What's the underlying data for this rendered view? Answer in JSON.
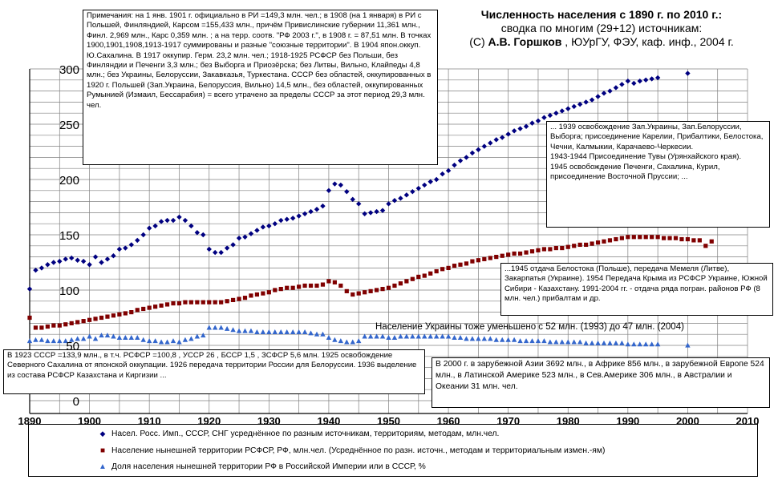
{
  "title": {
    "line1": "Численность населения с 1890 г. по 2010 г.:",
    "line2": "сводка по многим (29+12) источникам:",
    "line3_a": "(С) ",
    "line3_b": "А.В. Горшков",
    "line3_c": " , ЮУрГУ, ФЭУ, каф. инф., 2004 г."
  },
  "notes": {
    "top_left": "Примечания: на 1 янв. 1901 г. официально в РИ =149,3 млн. чел.; в 1908 (на 1 января) в РИ с Польшей, Финляндией, Карсом =155,433 млн., причём Привислинские губернии 11,361 млн., Финл. 2,969 млн., Карс 0,359 млн. ; а на терр. соотв. \"РФ 2003 г.\", в 1908 г. = 87,51 млн. В точках 1900,1901,1908,1913-1917 суммированы и разные \"союзные территории\". В 1904 япон.оккуп. Ю.Сахалина.  В 1917 оккупир. Герм. 23,2 млн. чел.; 1918-1925 РСФСР без Польши, без Финляндии и Печенги 3,3 млн.; без Выборга и Приозёрска; без Литвы, Вильно, Клайпеды 4,8 млн.; без Украины, Белоруссии, Закавказья, Туркестана. СССР без областей, оккупированных в 1920 г. Польшей (Зап.Украина, Белоруссия, Вильно) 14,5 млн., без областей, оккупированных Румынией (Измаил, Бессарабия) = всего утрачено за пределы СССР за этот период 29,3 млн. чел.",
    "right_1939": "... 1939  освобождение Зап.Украины, Зап.Белоруссии, Выборга; присоединение Карелии, Прибалтики, Белостока, Чечни, Калмыкии, Карачаево-Черкесии.\n1943-1944 Присоединение Тувы (Урянхайского края).\n1945 освобождение Печенги, Сахалина, Курил, присоединение Восточной Пруссии; ...",
    "right_1945": "...1945 отдача Белостока (Польше), передача Мемеля (Литве), Закарпатья (Украине). 1954 Передача Крыма из РСФСР Украине, Южной Сибири - Казахстану. 1991-2004 гг. - отдача ряда погран. районов РФ (8 млн. чел.) прибалтам   и др.",
    "ukraine": "Население Украины тоже уменьшено с 52 млн. (1993) до 47 млн. (2004)",
    "left_1923": "В 1923 СССР =133,9 млн., в т.ч. РСФСР =100,8 , УССР 26 , БССР 1,5 , ЗСФСР 5,6 млн. 1925 освобождение Северного Сахалина от японской оккупации. 1926 передача территории России для Белоруссии. 1936 выделение из состава РСФСР Казахстана и Киргизии ...",
    "right_2000": "В 2000 г. в зарубежной Азии 3692 млн., в Африке 856 млн., в зарубежной Европе 524 млн., в Латинской Америке 523 млн., в Сев.Америке 306 млн.,  в Австралии и Океании 31 млн. чел."
  },
  "legend": {
    "s1": "Насел. Росс. Имп., СССР, СНГ усреднённое по разным источникам, территориям, методам, млн.чел.",
    "s2": "Население нынешней территории РСФСР, РФ, млн.чел. (Усреднённое по разн. источн., методам и территориальным измен.-ям)",
    "s3": "Доля населения нынешней территории РФ в Российской Империи или в СССР, %"
  },
  "colors": {
    "s1": "#000080",
    "s2": "#800000",
    "s3": "#3366cc",
    "grid": "#808080",
    "axis": "#000000"
  },
  "chart_data": {
    "type": "scatter",
    "title": "Численность населения с 1890 г. по 2010 г.:",
    "xlim": [
      1890,
      2010
    ],
    "ylim": [
      0,
      300
    ],
    "x_ticks": [
      "1890",
      "1900",
      "1910",
      "1920",
      "1930",
      "1940",
      "1950",
      "1960",
      "1970",
      "1980",
      "1990",
      "2000",
      "2010"
    ],
    "y_ticks": [
      "0",
      "50",
      "100",
      "150",
      "200",
      "250",
      "300"
    ],
    "grid": true,
    "legend_position": "bottom",
    "series": [
      {
        "name": "Насел. Росс. Имп., СССР, СНГ усреднённое по разным источникам, территориям, методам, млн.чел.",
        "marker": "diamond",
        "x": [
          1890,
          1891,
          1892,
          1893,
          1894,
          1895,
          1896,
          1897,
          1898,
          1899,
          1900,
          1901,
          1902,
          1903,
          1904,
          1905,
          1906,
          1907,
          1908,
          1909,
          1910,
          1911,
          1912,
          1913,
          1914,
          1915,
          1916,
          1917,
          1918,
          1919,
          1920,
          1921,
          1922,
          1923,
          1924,
          1925,
          1926,
          1927,
          1928,
          1929,
          1930,
          1931,
          1932,
          1933,
          1934,
          1935,
          1936,
          1937,
          1938,
          1939,
          1940,
          1941,
          1942,
          1943,
          1944,
          1945,
          1946,
          1947,
          1948,
          1949,
          1950,
          1951,
          1952,
          1953,
          1954,
          1955,
          1956,
          1957,
          1958,
          1959,
          1960,
          1961,
          1962,
          1963,
          1964,
          1965,
          1966,
          1967,
          1968,
          1969,
          1970,
          1971,
          1972,
          1973,
          1974,
          1975,
          1976,
          1977,
          1978,
          1979,
          1980,
          1981,
          1982,
          1983,
          1984,
          1985,
          1986,
          1987,
          1988,
          1989,
          1990,
          1991,
          1992,
          1993,
          1994,
          1995,
          2000
        ],
        "y": [
          101,
          118,
          120,
          123,
          125,
          126,
          128,
          129,
          127,
          126,
          123,
          130,
          125,
          128,
          131,
          137,
          138,
          141,
          145,
          150,
          156,
          158,
          162,
          163,
          163,
          166,
          163,
          158,
          152,
          150,
          137,
          134,
          134,
          138,
          141,
          147,
          148,
          151,
          154,
          157,
          158,
          160,
          163,
          164,
          165,
          167,
          169,
          171,
          173,
          176,
          190,
          196,
          195,
          189,
          182,
          178,
          169,
          170,
          171,
          172,
          178,
          181,
          183,
          186,
          189,
          192,
          195,
          198,
          200,
          205,
          208,
          213,
          217,
          220,
          224,
          227,
          230,
          233,
          236,
          238,
          241,
          244,
          246,
          248,
          251,
          253,
          256,
          258,
          260,
          262,
          264,
          266,
          268,
          270,
          272,
          275,
          278,
          280,
          283,
          286,
          289,
          287,
          289,
          290,
          291,
          292,
          296
        ]
      },
      {
        "name": "Население нынешней территории РСФСР, РФ, млн.чел. (Усреднённое по разн. источн., методам и территориальным измен.-ям)",
        "marker": "square",
        "x": [
          1890,
          1891,
          1892,
          1893,
          1894,
          1895,
          1896,
          1897,
          1898,
          1899,
          1900,
          1901,
          1902,
          1903,
          1904,
          1905,
          1906,
          1907,
          1908,
          1909,
          1910,
          1911,
          1912,
          1913,
          1914,
          1915,
          1916,
          1917,
          1918,
          1919,
          1920,
          1921,
          1922,
          1923,
          1924,
          1925,
          1926,
          1927,
          1928,
          1929,
          1930,
          1931,
          1932,
          1933,
          1934,
          1935,
          1936,
          1937,
          1938,
          1939,
          1940,
          1941,
          1942,
          1943,
          1944,
          1945,
          1946,
          1947,
          1948,
          1949,
          1950,
          1951,
          1952,
          1953,
          1954,
          1955,
          1956,
          1957,
          1958,
          1959,
          1960,
          1961,
          1962,
          1963,
          1964,
          1965,
          1966,
          1967,
          1968,
          1969,
          1970,
          1971,
          1972,
          1973,
          1974,
          1975,
          1976,
          1977,
          1978,
          1979,
          1980,
          1981,
          1982,
          1983,
          1984,
          1985,
          1986,
          1987,
          1988,
          1989,
          1990,
          1991,
          1992,
          1993,
          1994,
          1995,
          1996,
          1997,
          1998,
          1999,
          2000,
          2001,
          2002,
          2003,
          2004
        ],
        "y": [
          75,
          66,
          66,
          67,
          68,
          68,
          69,
          70,
          71,
          72,
          73,
          74,
          75,
          76,
          77,
          78,
          79,
          80,
          82,
          83,
          84,
          85,
          86,
          87,
          88,
          88,
          89,
          89,
          89,
          89,
          89,
          89,
          89,
          90,
          91,
          92,
          93,
          95,
          96,
          97,
          98,
          100,
          101,
          102,
          102,
          103,
          104,
          104,
          104,
          105,
          108,
          107,
          104,
          99,
          96,
          97,
          98,
          99,
          100,
          101,
          102,
          104,
          106,
          108,
          110,
          112,
          113,
          115,
          117,
          119,
          120,
          122,
          123,
          124,
          126,
          127,
          128,
          129,
          130,
          131,
          132,
          133,
          133,
          134,
          135,
          136,
          137,
          137,
          138,
          138,
          139,
          140,
          141,
          141,
          142,
          143,
          144,
          145,
          146,
          147,
          148,
          148,
          148,
          148,
          148,
          148,
          147,
          147,
          147,
          146,
          146,
          145,
          145,
          140,
          144
        ]
      },
      {
        "name": "Доля населения нынешней территории РФ в Российской Империи или в СССР, %",
        "marker": "triangle",
        "x": [
          1890,
          1891,
          1892,
          1893,
          1894,
          1895,
          1896,
          1897,
          1898,
          1899,
          1900,
          1901,
          1902,
          1903,
          1904,
          1905,
          1906,
          1907,
          1908,
          1909,
          1910,
          1911,
          1912,
          1913,
          1914,
          1915,
          1916,
          1917,
          1918,
          1919,
          1920,
          1921,
          1922,
          1923,
          1924,
          1925,
          1926,
          1927,
          1928,
          1929,
          1930,
          1931,
          1932,
          1933,
          1934,
          1935,
          1936,
          1937,
          1938,
          1939,
          1940,
          1941,
          1942,
          1943,
          1944,
          1945,
          1946,
          1947,
          1948,
          1949,
          1950,
          1951,
          1952,
          1953,
          1954,
          1955,
          1956,
          1957,
          1958,
          1959,
          1960,
          1961,
          1962,
          1963,
          1964,
          1965,
          1966,
          1967,
          1968,
          1969,
          1970,
          1971,
          1972,
          1973,
          1974,
          1975,
          1976,
          1977,
          1978,
          1979,
          1980,
          1981,
          1982,
          1983,
          1984,
          1985,
          1986,
          1987,
          1988,
          1989,
          1990,
          1991,
          1992,
          1993,
          1994,
          1995,
          2000
        ],
        "y": [
          54,
          55,
          55,
          54,
          54,
          54,
          54,
          55,
          56,
          56,
          58,
          56,
          59,
          59,
          58,
          57,
          57,
          57,
          57,
          55,
          54,
          54,
          53,
          53,
          54,
          53,
          55,
          56,
          58,
          59,
          66,
          66,
          66,
          65,
          64,
          63,
          63,
          63,
          62,
          62,
          62,
          62,
          62,
          62,
          62,
          62,
          62,
          61,
          60,
          60,
          57,
          55,
          54,
          53,
          53,
          54,
          58,
          58,
          58,
          58,
          57,
          57,
          58,
          58,
          58,
          58,
          58,
          58,
          58,
          58,
          58,
          57,
          57,
          56,
          56,
          56,
          56,
          56,
          55,
          55,
          55,
          55,
          54,
          54,
          54,
          54,
          54,
          53,
          53,
          53,
          53,
          53,
          53,
          52,
          52,
          52,
          52,
          52,
          52,
          52,
          51,
          51,
          51,
          51,
          51,
          51,
          50
        ]
      }
    ]
  }
}
